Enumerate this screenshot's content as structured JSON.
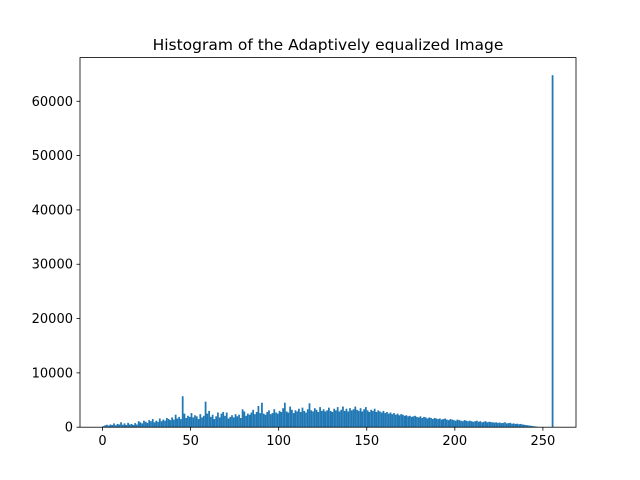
{
  "chart_data": {
    "type": "histogram",
    "title": "Histogram of the Adaptively equalized Image",
    "color": "#1f77b4",
    "bins": [
      0,
      1,
      2,
      3,
      4,
      5,
      6,
      7,
      8,
      9,
      10,
      11,
      12,
      13,
      14,
      15,
      16,
      17,
      18,
      19,
      20,
      21,
      22,
      23,
      24,
      25,
      26,
      27,
      28,
      29,
      30,
      31,
      32,
      33,
      34,
      35,
      36,
      37,
      38,
      39,
      40,
      41,
      42,
      43,
      44,
      45,
      46,
      47,
      48,
      49,
      50,
      51,
      52,
      53,
      54,
      55,
      56,
      57,
      58,
      59,
      60,
      61,
      62,
      63,
      64,
      65,
      66,
      67,
      68,
      69,
      70,
      71,
      72,
      73,
      74,
      75,
      76,
      77,
      78,
      79,
      80,
      81,
      82,
      83,
      84,
      85,
      86,
      87,
      88,
      89,
      90,
      91,
      92,
      93,
      94,
      95,
      96,
      97,
      98,
      99,
      100,
      101,
      102,
      103,
      104,
      105,
      106,
      107,
      108,
      109,
      110,
      111,
      112,
      113,
      114,
      115,
      116,
      117,
      118,
      119,
      120,
      121,
      122,
      123,
      124,
      125,
      126,
      127,
      128,
      129,
      130,
      131,
      132,
      133,
      134,
      135,
      136,
      137,
      138,
      139,
      140,
      141,
      142,
      143,
      144,
      145,
      146,
      147,
      148,
      149,
      150,
      151,
      152,
      153,
      154,
      155,
      156,
      157,
      158,
      159,
      160,
      161,
      162,
      163,
      164,
      165,
      166,
      167,
      168,
      169,
      170,
      171,
      172,
      173,
      174,
      175,
      176,
      177,
      178,
      179,
      180,
      181,
      182,
      183,
      184,
      185,
      186,
      187,
      188,
      189,
      190,
      191,
      192,
      193,
      194,
      195,
      196,
      197,
      198,
      199,
      200,
      201,
      202,
      203,
      204,
      205,
      206,
      207,
      208,
      209,
      210,
      211,
      212,
      213,
      214,
      215,
      216,
      217,
      218,
      219,
      220,
      221,
      222,
      223,
      224,
      225,
      226,
      227,
      228,
      229,
      230,
      231,
      232,
      233,
      234,
      235,
      236,
      237,
      238,
      239,
      240,
      241,
      242,
      243,
      244,
      245,
      246,
      247,
      248,
      249,
      250,
      251,
      252,
      253,
      254,
      255,
      256
    ],
    "counts": [
      200,
      350,
      450,
      300,
      500,
      400,
      700,
      350,
      600,
      500,
      900,
      450,
      700,
      400,
      800,
      500,
      600,
      400,
      750,
      500,
      1100,
      900,
      700,
      1200,
      1000,
      800,
      1300,
      1100,
      1500,
      900,
      1200,
      1000,
      1600,
      1100,
      1400,
      1200,
      1700,
      1500,
      1300,
      1800,
      1400,
      2300,
      1600,
      1900,
      1500,
      5700,
      2500,
      1700,
      2100,
      1900,
      2600,
      1800,
      2200,
      2000,
      1500,
      2400,
      1800,
      2100,
      4700,
      2500,
      3000,
      1900,
      2300,
      1500,
      2000,
      2700,
      1800,
      2500,
      2800,
      2100,
      2700,
      1600,
      1900,
      2200,
      1800,
      2400,
      2000,
      2300,
      1700,
      3300,
      2900,
      2100,
      2500,
      2300,
      2700,
      3200,
      2400,
      2800,
      3900,
      2600,
      4500,
      2500,
      2300,
      2800,
      3100,
      2400,
      2600,
      3300,
      2700,
      2500,
      3000,
      2800,
      3500,
      4500,
      2900,
      2700,
      3800,
      3200,
      2600,
      3100,
      2900,
      3400,
      2800,
      3600,
      3000,
      2700,
      3300,
      4400,
      3100,
      2900,
      3500,
      3200,
      2800,
      3700,
      3000,
      3300,
      2900,
      3100,
      3600,
      3000,
      2800,
      3400,
      3100,
      3700,
      2900,
      3200,
      3800,
      3000,
      3400,
      2900,
      3500,
      3100,
      3300,
      3800,
      3200,
      3000,
      3500,
      2900,
      3300,
      3700,
      3100,
      2800,
      3200,
      3000,
      3400,
      2800,
      3100,
      2900,
      2700,
      3000,
      2600,
      2800,
      2500,
      2700,
      2400,
      2600,
      2300,
      2500,
      2200,
      2400,
      2300,
      2100,
      2200,
      2000,
      2100,
      1900,
      2000,
      2100,
      1900,
      1800,
      2000,
      1700,
      1900,
      1800,
      1600,
      1800,
      1700,
      1500,
      1700,
      1600,
      1500,
      1600,
      1400,
      1500,
      1600,
      1400,
      1300,
      1500,
      1400,
      1300,
      1200,
      1400,
      1300,
      1200,
      1100,
      1300,
      1200,
      1100,
      1200,
      1100,
      1000,
      1100,
      1200,
      1000,
      1100,
      900,
      1000,
      1100,
      900,
      1000,
      950,
      900,
      850,
      900,
      800,
      850,
      750,
      800,
      900,
      700,
      750,
      800,
      650,
      700,
      600,
      650,
      550,
      600,
      500,
      450,
      400,
      350,
      300,
      250,
      200,
      150,
      100,
      50,
      30,
      0,
      0,
      0,
      0,
      0,
      0,
      64800
    ],
    "xlim": [
      -12.8,
      268.8
    ],
    "xticks": [
      0,
      50,
      100,
      150,
      200,
      250
    ],
    "ylim": [
      0,
      68040
    ],
    "yticks": [
      0,
      10000,
      20000,
      30000,
      40000,
      50000,
      60000
    ]
  }
}
